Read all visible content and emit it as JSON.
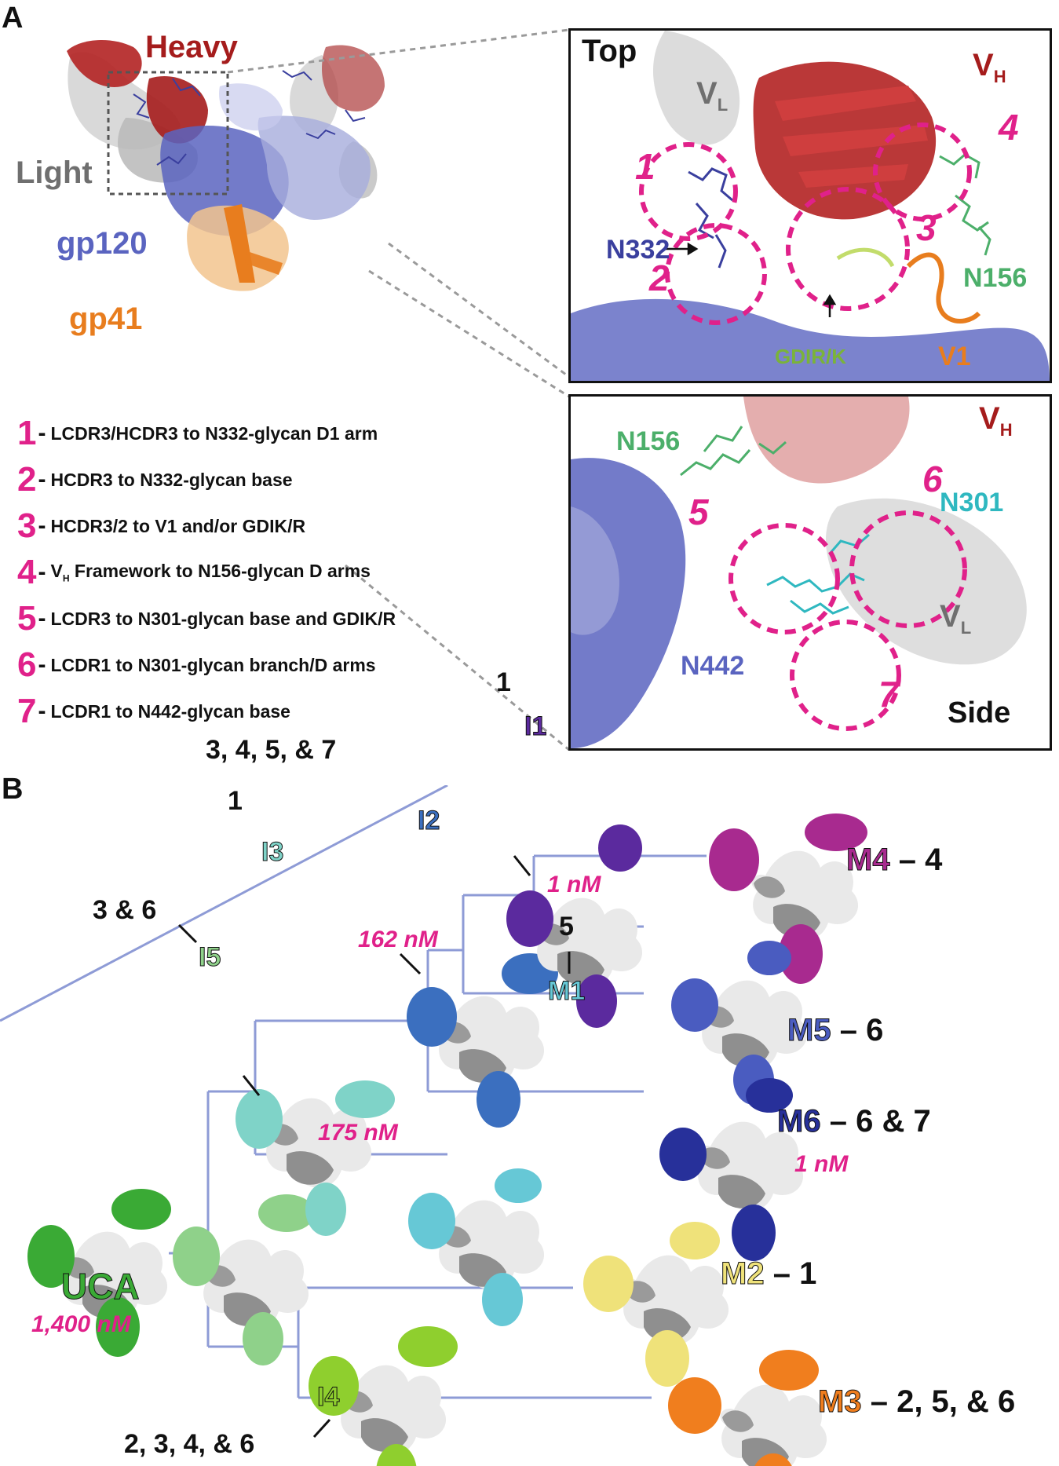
{
  "panel_a": {
    "letter": "A",
    "labels": {
      "heavy": "Heavy",
      "light": "Light",
      "gp120": "gp120",
      "gp41": "gp41"
    },
    "legend": [
      {
        "num": "1",
        "text_pre": "LCDR3/HCDR3 to N332-glycan D1 arm",
        "sub": ""
      },
      {
        "num": "2",
        "text_pre": "HCDR3 to N332-glycan base",
        "sub": ""
      },
      {
        "num": "3",
        "text_pre": "HCDR3/2 to V1 and/or GDIK/R",
        "sub": ""
      },
      {
        "num": "4",
        "text_pre": "V",
        "sub": "H",
        "text_post": " Framework to N156-glycan D arms"
      },
      {
        "num": "5",
        "text_pre": "LCDR3 to N301-glycan base and GDIK/R",
        "sub": ""
      },
      {
        "num": "6",
        "text_pre": "LCDR1 to N301-glycan branch/D arms",
        "sub": ""
      },
      {
        "num": "7",
        "text_pre": "LCDR1 to N442-glycan base",
        "sub": ""
      }
    ],
    "top_inset": {
      "title": "Top",
      "vh": "V",
      "vh_sub": "H",
      "vl": "V",
      "vl_sub": "L",
      "n332": "N332",
      "n156": "N156",
      "gdir": "GDIR/K",
      "v1": "V1",
      "sites": [
        "1",
        "2",
        "3",
        "4"
      ]
    },
    "side_inset": {
      "title": "Side",
      "vh": "V",
      "vh_sub": "H",
      "vl": "V",
      "vl_sub": "L",
      "n156": "N156",
      "n301": "N301",
      "n442": "N442",
      "sites": [
        "5",
        "6",
        "7"
      ]
    }
  },
  "panel_b": {
    "letter": "B",
    "nodes": {
      "uca": {
        "name": "UCA",
        "affinity": "1,400 nM"
      },
      "i5": {
        "name": "I5",
        "mut": "3 & 6"
      },
      "i3": {
        "name": "I3",
        "mut": "1",
        "affinity": "162 nM"
      },
      "i2": {
        "name": "I2",
        "mut": "3, 4, 5,  & 7",
        "affinity": "1 nM"
      },
      "i1": {
        "name": "I1",
        "mut": "1"
      },
      "i4": {
        "name": "I4",
        "mut": "2, 3, 4, & 6",
        "affinity": "175 nM"
      },
      "m1": {
        "name": "M1",
        "mut": "5"
      },
      "m2": {
        "name": "M2",
        "mut": "1"
      },
      "m3": {
        "name": "M3",
        "mut": "2, 5,  & 6"
      },
      "m4": {
        "name": "M4",
        "mut": "4"
      },
      "m5": {
        "name": "M5",
        "mut": "6"
      },
      "m6": {
        "name": "M6",
        "mut": "6 & 7",
        "affinity": "1 nM"
      }
    },
    "dash": "–",
    "colors": {
      "uca": "#3aaa35",
      "i5": "#8fd18a",
      "i3": "#7fd3c8",
      "i2": "#3b6fbf",
      "i1": "#5b2a9e",
      "i4": "#8fcf2e",
      "m1": "#66c8d6",
      "m2": "#efe27a",
      "m3": "#f07e1e",
      "m4": "#a82a8f",
      "m5": "#4a5cc0",
      "m6": "#27309a",
      "tree": "#8e9bd6",
      "affinity": "#e0218a"
    }
  }
}
